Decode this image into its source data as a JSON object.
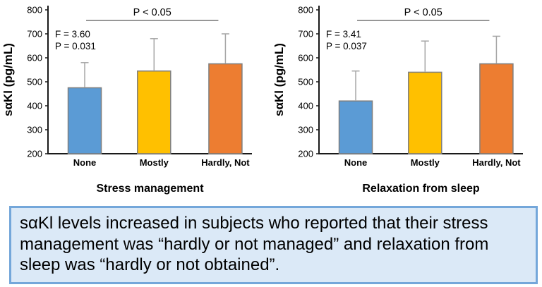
{
  "caption": {
    "text": "sαKl levels increased in subjects who reported that their stress management was “hardly or not managed” and relaxation from sleep was “hardly or not obtained”.",
    "background": "#dbe9f7",
    "border_color": "#74a7da"
  },
  "chart_style": {
    "axis_color": "#1a1a1a",
    "text_color": "#000000",
    "bar_border_color": "#7f7f7f",
    "error_bar_color": "#a6a6a6",
    "bracket_color": "#595959"
  },
  "chart_data": [
    {
      "type": "bar",
      "title": "",
      "xlabel": "Stress management",
      "ylabel": "sαKl (pg/mL)",
      "categories": [
        "None",
        "Mostly",
        "Hardly, Not"
      ],
      "values": [
        475,
        545,
        575
      ],
      "error_top": [
        580,
        680,
        700
      ],
      "ylim": [
        200,
        800
      ],
      "ytick_step": 100,
      "yticks": [
        200,
        300,
        400,
        500,
        600,
        700,
        800
      ],
      "stats": [
        "F = 3.60",
        "P = 0.031"
      ],
      "significance": "P < 0.05",
      "bar_colors": [
        "#5b9bd5",
        "#ffc000",
        "#ed7d31"
      ],
      "grid": false,
      "legend": "none"
    },
    {
      "type": "bar",
      "title": "",
      "xlabel": "Relaxation from sleep",
      "ylabel": "sαKl (pg/mL)",
      "categories": [
        "None",
        "Mostly",
        "Hardly, Not"
      ],
      "values": [
        420,
        540,
        575
      ],
      "error_top": [
        545,
        670,
        690
      ],
      "ylim": [
        200,
        800
      ],
      "ytick_step": 100,
      "yticks": [
        200,
        300,
        400,
        500,
        600,
        700,
        800
      ],
      "stats": [
        "F = 3.41",
        "P = 0.037"
      ],
      "significance": "P < 0.05",
      "bar_colors": [
        "#5b9bd5",
        "#ffc000",
        "#ed7d31"
      ],
      "grid": false,
      "legend": "none"
    }
  ]
}
